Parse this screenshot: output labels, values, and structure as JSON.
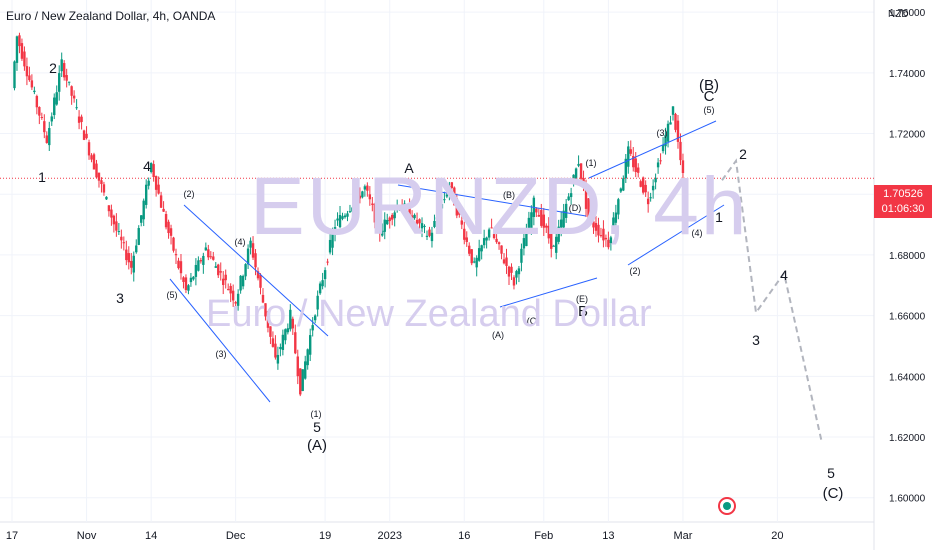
{
  "header": {
    "symbol_title": "Euro / New Zealand Dollar, 4h, OANDA",
    "currency": "NZD"
  },
  "watermark": {
    "line1": "EURNZD, 4h",
    "line2": "Euro / New Zealand Dollar"
  },
  "price_badge": {
    "price": "1.70526",
    "countdown": "01:06:30"
  },
  "colors": {
    "up": "#089981",
    "down": "#f23645",
    "channel": "#2962ff",
    "projection": "#b2b5be",
    "grid": "#f0f3fa",
    "text": "#131722",
    "price_line": "#f23645"
  },
  "chart_data": {
    "type": "candlestick",
    "ylim": [
      1.592,
      1.764
    ],
    "y_ticks": [
      "1.60000",
      "1.62000",
      "1.64000",
      "1.66000",
      "1.68000",
      "1.70000",
      "1.72000",
      "1.74000",
      "1.76000"
    ],
    "x_ticks": [
      "17",
      "Nov",
      "14",
      "Dec",
      "19",
      "2023",
      "16",
      "Feb",
      "13",
      "Mar",
      "20"
    ],
    "last_price": 1.70526,
    "price_path": [
      {
        "t": "Oct 17",
        "price": 1.735
      },
      {
        "t": "Oct 18",
        "price": 1.752
      },
      {
        "t": "Oct 24",
        "price": 1.718
      },
      {
        "t": "Oct 27",
        "price": 1.743
      },
      {
        "t": "Nov 2",
        "price": 1.712
      },
      {
        "t": "Nov 7",
        "price": 1.688
      },
      {
        "t": "Nov 10",
        "price": 1.676
      },
      {
        "t": "Nov 14",
        "price": 1.71
      },
      {
        "t": "Nov 17",
        "price": 1.69
      },
      {
        "t": "Nov 21",
        "price": 1.668
      },
      {
        "t": "Nov 25",
        "price": 1.682
      },
      {
        "t": "Dec 1",
        "price": 1.665
      },
      {
        "t": "Dec 4",
        "price": 1.684
      },
      {
        "t": "Dec 9",
        "price": 1.645
      },
      {
        "t": "Dec 12",
        "price": 1.66
      },
      {
        "t": "Dec 14",
        "price": 1.636
      },
      {
        "t": "Dec 17",
        "price": 1.662
      },
      {
        "t": "Dec 21",
        "price": 1.69
      },
      {
        "t": "Dec 27",
        "price": 1.702
      },
      {
        "t": "Dec 30",
        "price": 1.688
      },
      {
        "t": "Jan 3",
        "price": 1.697
      },
      {
        "t": "Jan 9",
        "price": 1.686
      },
      {
        "t": "Jan 13",
        "price": 1.703
      },
      {
        "t": "Jan 18",
        "price": 1.676
      },
      {
        "t": "Jan 21",
        "price": 1.689
      },
      {
        "t": "Jan 26",
        "price": 1.671
      },
      {
        "t": "Jan 30",
        "price": 1.697
      },
      {
        "t": "Feb 3",
        "price": 1.682
      },
      {
        "t": "Feb 8",
        "price": 1.711
      },
      {
        "t": "Feb 10",
        "price": 1.692
      },
      {
        "t": "Feb 14",
        "price": 1.684
      },
      {
        "t": "Feb 18",
        "price": 1.714
      },
      {
        "t": "Feb 22",
        "price": 1.698
      },
      {
        "t": "Feb 27",
        "price": 1.728
      },
      {
        "t": "Mar 1",
        "price": 1.70526
      }
    ],
    "projection_path": [
      {
        "label": "2",
        "price": 1.711
      },
      {
        "label": "3",
        "price": 1.661
      },
      {
        "label": "4",
        "price": 1.674
      },
      {
        "label": "5",
        "price": 1.618
      }
    ],
    "wave_labels": [
      {
        "text": "1",
        "kind": "impulse"
      },
      {
        "text": "2",
        "kind": "impulse"
      },
      {
        "text": "3",
        "kind": "impulse"
      },
      {
        "text": "4",
        "kind": "impulse"
      },
      {
        "text": "5",
        "kind": "impulse"
      },
      {
        "text": "(A)",
        "kind": "major"
      },
      {
        "text": "(1)",
        "kind": "minor"
      },
      {
        "text": "(2)",
        "kind": "minor"
      },
      {
        "text": "(3)",
        "kind": "minor"
      },
      {
        "text": "(4)",
        "kind": "minor"
      },
      {
        "text": "(5)",
        "kind": "minor"
      },
      {
        "text": "A",
        "kind": "impulse"
      },
      {
        "text": "(B)",
        "kind": "minor"
      },
      {
        "text": "(D)",
        "kind": "minor"
      },
      {
        "text": "(A)",
        "kind": "minor"
      },
      {
        "text": "(C)",
        "kind": "minor"
      },
      {
        "text": "(E)",
        "kind": "minor"
      },
      {
        "text": "B",
        "kind": "impulse"
      },
      {
        "text": "(1)",
        "kind": "minor"
      },
      {
        "text": "(2)",
        "kind": "minor"
      },
      {
        "text": "(3)",
        "kind": "minor"
      },
      {
        "text": "(4)",
        "kind": "minor"
      },
      {
        "text": "(5)",
        "kind": "minor"
      },
      {
        "text": "(B)",
        "kind": "major"
      },
      {
        "text": "C",
        "kind": "impulse"
      },
      {
        "text": "1",
        "kind": "impulse"
      },
      {
        "text": "2",
        "kind": "impulse"
      },
      {
        "text": "3",
        "kind": "impulse"
      },
      {
        "text": "4",
        "kind": "impulse"
      },
      {
        "text": "5",
        "kind": "impulse"
      },
      {
        "text": "(C)",
        "kind": "major"
      }
    ]
  }
}
